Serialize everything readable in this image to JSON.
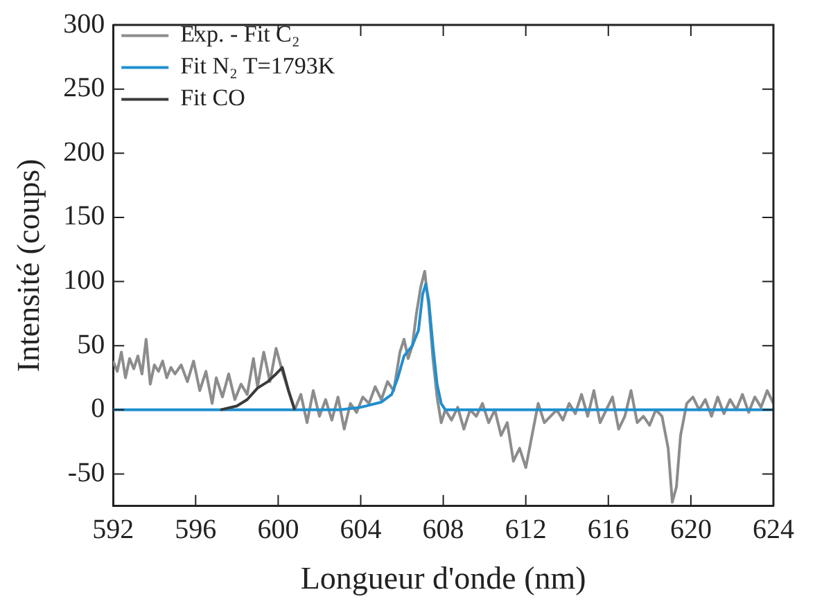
{
  "chart_data": {
    "type": "line",
    "xlabel": "Longueur d'onde (nm)",
    "ylabel": "Intensité (coups)",
    "xlim": [
      592,
      624
    ],
    "xticks": [
      592,
      596,
      600,
      604,
      608,
      612,
      616,
      620,
      624
    ],
    "ylim": [
      -75,
      300
    ],
    "yticks": [
      -50,
      0,
      50,
      100,
      150,
      200,
      250,
      300
    ],
    "grid": false,
    "legend": "top left",
    "marker": "none",
    "line_style": "solid",
    "series": [
      {
        "name": "Exp. - Fit C₂",
        "color": "#8c8c8c",
        "x": [
          592.0,
          592.2,
          592.4,
          592.6,
          592.8,
          593.0,
          593.2,
          593.4,
          593.6,
          593.8,
          594.0,
          594.2,
          594.4,
          594.6,
          594.8,
          595.0,
          595.3,
          595.6,
          595.9,
          596.2,
          596.5,
          596.8,
          597.0,
          597.3,
          597.6,
          597.9,
          598.2,
          598.5,
          598.8,
          599.0,
          599.3,
          599.6,
          599.9,
          600.2,
          600.5,
          600.8,
          601.1,
          601.4,
          601.7,
          602.0,
          602.3,
          602.6,
          602.9,
          603.2,
          603.5,
          603.8,
          604.1,
          604.4,
          604.7,
          605.0,
          605.3,
          605.6,
          605.9,
          606.1,
          606.3,
          606.5,
          606.7,
          606.9,
          607.1,
          607.3,
          607.5,
          607.7,
          607.9,
          608.1,
          608.4,
          608.7,
          609.0,
          609.3,
          609.6,
          609.9,
          610.2,
          610.5,
          610.8,
          611.1,
          611.4,
          611.7,
          612.0,
          612.3,
          612.6,
          612.9,
          613.2,
          613.5,
          613.8,
          614.1,
          614.4,
          614.7,
          615.0,
          615.3,
          615.6,
          615.9,
          616.2,
          616.5,
          616.8,
          617.1,
          617.4,
          617.7,
          618.0,
          618.3,
          618.6,
          618.9,
          619.1,
          619.3,
          619.5,
          619.8,
          620.1,
          620.4,
          620.7,
          621.0,
          621.3,
          621.6,
          621.9,
          622.2,
          622.5,
          622.8,
          623.1,
          623.4,
          623.7,
          624.0
        ],
        "values": [
          38,
          30,
          45,
          25,
          40,
          32,
          42,
          28,
          55,
          20,
          35,
          30,
          38,
          25,
          33,
          28,
          35,
          22,
          38,
          15,
          30,
          5,
          25,
          10,
          28,
          8,
          20,
          12,
          40,
          18,
          45,
          22,
          48,
          30,
          15,
          0,
          12,
          -10,
          15,
          -5,
          8,
          -8,
          10,
          -15,
          5,
          -2,
          10,
          5,
          18,
          8,
          22,
          15,
          45,
          55,
          40,
          50,
          75,
          95,
          108,
          80,
          40,
          10,
          -10,
          0,
          -8,
          2,
          -15,
          0,
          -5,
          5,
          -10,
          0,
          -20,
          -10,
          -40,
          -30,
          -45,
          -20,
          5,
          -10,
          -5,
          0,
          -8,
          5,
          -3,
          12,
          -5,
          15,
          -10,
          0,
          10,
          -15,
          -5,
          15,
          -10,
          -5,
          -12,
          0,
          -5,
          -30,
          -72,
          -60,
          -20,
          5,
          10,
          0,
          8,
          -5,
          10,
          -3,
          8,
          0,
          12,
          -2,
          10,
          2,
          15,
          5
        ]
      },
      {
        "name": "Fit N₂ T=1793K",
        "color": "#1f8fd0",
        "x": [
          592,
          603,
          604,
          605,
          605.5,
          605.8,
          606.1,
          606.5,
          606.8,
          607.0,
          607.15,
          607.3,
          607.5,
          607.7,
          607.9,
          608.1,
          624
        ],
        "values": [
          0,
          0,
          2,
          6,
          12,
          25,
          42,
          50,
          62,
          90,
          98,
          85,
          50,
          20,
          5,
          0,
          0
        ]
      },
      {
        "name": "Fit CO",
        "color": "#3a3a3a",
        "x": [
          597.2,
          598.0,
          598.5,
          599.0,
          599.5,
          599.9,
          600.2,
          600.5,
          600.8
        ],
        "values": [
          0,
          3,
          8,
          17,
          22,
          28,
          33,
          15,
          0
        ]
      }
    ]
  }
}
